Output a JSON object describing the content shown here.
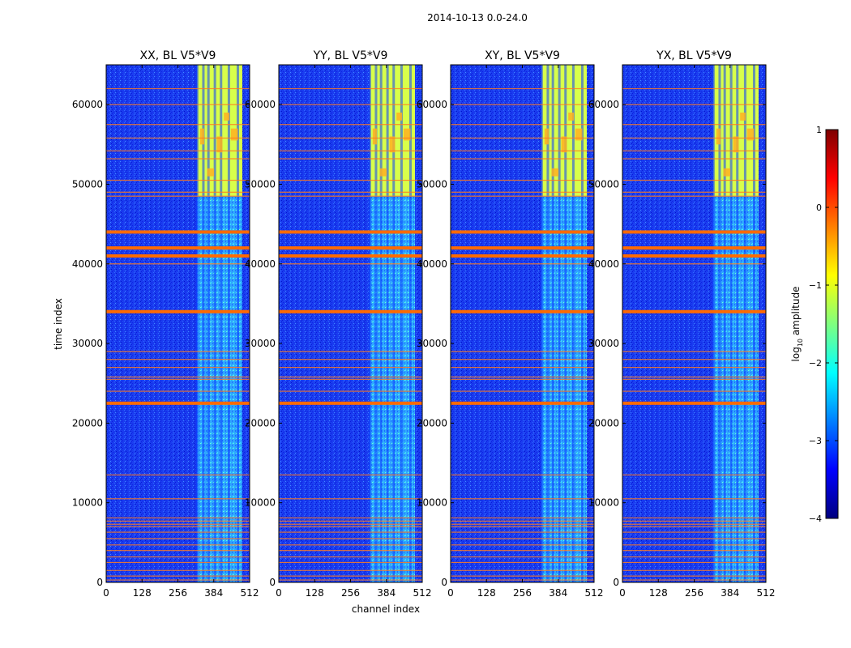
{
  "suptitle": "2014-10-13 0.0-24.0",
  "chart_data": {
    "type": "heatmap",
    "xlabel": "channel index",
    "ylabel": "time index",
    "xlim": [
      0,
      512
    ],
    "ylim": [
      0,
      65000
    ],
    "xticks": [
      "0",
      "128",
      "256",
      "384",
      "512"
    ],
    "xtick_values": [
      0,
      128,
      256,
      384,
      512
    ],
    "yticks": [
      "0",
      "10000",
      "20000",
      "30000",
      "40000",
      "50000",
      "60000"
    ],
    "ytick_values": [
      0,
      10000,
      20000,
      30000,
      40000,
      50000,
      60000
    ],
    "panels": [
      {
        "title": "XX, BL V5*V9"
      },
      {
        "title": "YY, BL V5*V9"
      },
      {
        "title": "XY, BL V5*V9"
      },
      {
        "title": "YX, BL V5*V9"
      }
    ],
    "band_channels": [
      [
        325,
        512
      ]
    ],
    "band_channel_lines": [
      325,
      347,
      365,
      388,
      410,
      438,
      470
    ],
    "high_amplitude_time_range": [
      48500,
      65000
    ],
    "flagged_thick_rows": [
      22500,
      34000,
      41000,
      42000,
      44000
    ],
    "flagged_thin_rows": [
      300,
      800,
      1500,
      2500,
      3200,
      4000,
      4700,
      5500,
      6300,
      7000,
      7300,
      7700,
      8100,
      10500,
      13500,
      24000,
      25500,
      25800,
      27000,
      28000,
      29000,
      40000,
      48500,
      49000,
      50500,
      53200,
      54200,
      55800,
      57500,
      60000,
      62000
    ],
    "colorbar": {
      "label_prefix": "log",
      "label_sub": "10",
      "label_suffix": " amplitude",
      "min": -4,
      "max": 1,
      "ticks": [
        "1",
        "0",
        "−1",
        "−2",
        "−3",
        "−4"
      ],
      "tick_values": [
        1,
        0,
        -1,
        -2,
        -3,
        -4
      ],
      "colormap": [
        "#00007f",
        "#0000ff",
        "#007fff",
        "#00ffff",
        "#7fff7f",
        "#ffff00",
        "#ff7f00",
        "#ff0000",
        "#7f0000"
      ]
    }
  }
}
